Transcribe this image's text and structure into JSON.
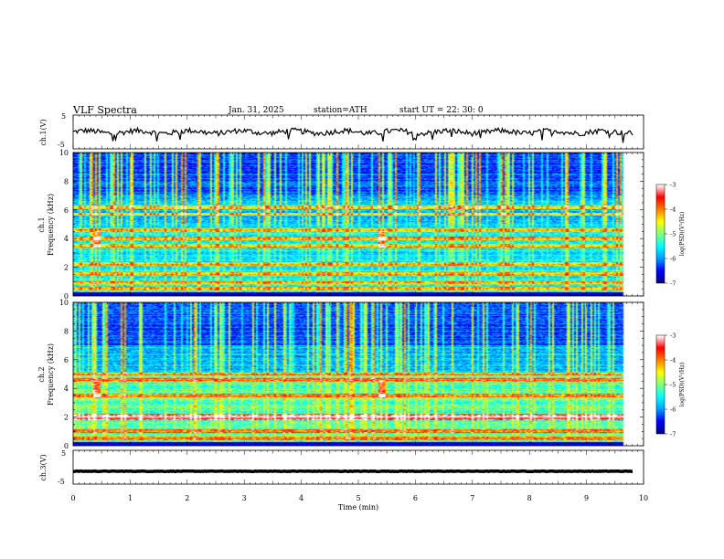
{
  "header": {
    "title": "VLF  Spectra",
    "date": "Jan. 31, 2025",
    "station": "station=ATH",
    "start": "start  UT  =   22: 30: 0"
  },
  "colors": {
    "colormap": [
      "#000080",
      "#0000ff",
      "#00a0ff",
      "#00ffff",
      "#80ff80",
      "#ffff00",
      "#ff8000",
      "#ff0000",
      "#ffffff"
    ],
    "trace": "#000000"
  },
  "chart_data": [
    {
      "type": "line",
      "ylabel": "ch.1(V)",
      "ylim": [
        -5,
        5
      ],
      "yticks": [
        "5",
        "-5"
      ],
      "note": "noisy waveform fluctuating around 0 V"
    },
    {
      "type": "heatmap",
      "ylabel": "Frequency  (kHz)",
      "channel_label": "ch.1",
      "ylim": [
        0,
        10
      ],
      "yticks": [
        "0",
        "2",
        "4",
        "6",
        "8",
        "10"
      ],
      "colorbar": {
        "label": "log(PSD)(V²/Hz)",
        "range": [
          -7,
          -3
        ],
        "ticks": [
          "-3",
          "-4",
          "-5",
          "-6",
          "-7"
        ]
      },
      "bands_khz": [
        0.5,
        0.9,
        1.5,
        2.2,
        3.5,
        4.0,
        4.6,
        5.7,
        6.2
      ],
      "bursts_min": [
        0.4,
        5.5
      ]
    },
    {
      "type": "heatmap",
      "ylabel": "Frequency  (kHz)",
      "channel_label": "ch.2",
      "ylim": [
        0,
        10
      ],
      "yticks": [
        "0",
        "2",
        "4",
        "6",
        "8",
        "10"
      ],
      "colorbar": {
        "label": "log(PSD)(V²/Hz)",
        "range": [
          -7,
          -3
        ],
        "ticks": [
          "-3",
          "-4",
          "-5",
          "-6",
          "-7"
        ]
      },
      "bands_khz": [
        0.5,
        1.0,
        1.9,
        2.1,
        3.5,
        4.6,
        5.0
      ],
      "bursts_min": [
        0.4,
        5.5
      ]
    },
    {
      "type": "line",
      "ylabel": "ch.3(V)",
      "ylim": [
        -5,
        5
      ],
      "yticks": [
        "5",
        "-5"
      ],
      "note": "flat trace near -1.2 V"
    }
  ],
  "xaxis": {
    "label": "Time  (min)",
    "xlim": [
      0,
      10
    ],
    "ticks": [
      "0",
      "1",
      "2",
      "3",
      "4",
      "5",
      "6",
      "7",
      "8",
      "9",
      "10"
    ],
    "data_end_min": 9.83
  }
}
